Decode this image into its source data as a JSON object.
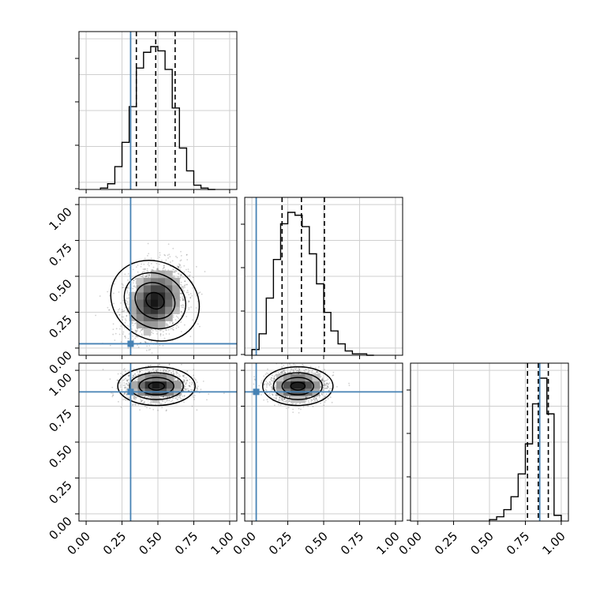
{
  "chart_data": {
    "type": "corner",
    "grid": true,
    "truth_color": "#4682b4",
    "hist_color": "#000000",
    "ticks": [
      "0.00",
      "0.25",
      "0.50",
      "0.75",
      "1.00"
    ],
    "tick_values": [
      0,
      0.25,
      0.5,
      0.75,
      1.0
    ],
    "xlim": [
      -0.05,
      1.05
    ],
    "parameters": [
      {
        "truth": 0.31,
        "quantiles": [
          0.35,
          0.485,
          0.62
        ],
        "histogram": {
          "bin_edges": [
            0.1,
            0.15,
            0.2,
            0.25,
            0.3,
            0.35,
            0.4,
            0.45,
            0.5,
            0.55,
            0.6,
            0.65,
            0.7,
            0.75,
            0.8,
            0.85,
            0.9
          ],
          "counts": [
            0.01,
            0.04,
            0.16,
            0.33,
            0.58,
            0.85,
            0.96,
            1.0,
            0.97,
            0.84,
            0.57,
            0.29,
            0.13,
            0.03,
            0.01,
            0.0
          ]
        }
      },
      {
        "truth": 0.03,
        "quantiles": [
          0.21,
          0.345,
          0.505
        ],
        "histogram": {
          "bin_edges": [
            0.0,
            0.05,
            0.1,
            0.15,
            0.2,
            0.25,
            0.3,
            0.35,
            0.4,
            0.45,
            0.5,
            0.55,
            0.6,
            0.65,
            0.7,
            0.75,
            0.8,
            0.85
          ],
          "counts": [
            0.04,
            0.15,
            0.4,
            0.67,
            0.92,
            1.0,
            0.98,
            0.9,
            0.71,
            0.5,
            0.3,
            0.17,
            0.08,
            0.03,
            0.01,
            0.01,
            0.0
          ]
        }
      },
      {
        "truth": 0.85,
        "quantiles": [
          0.765,
          0.84,
          0.91
        ],
        "histogram": {
          "bin_edges": [
            0.5,
            0.55,
            0.6,
            0.65,
            0.7,
            0.75,
            0.8,
            0.85,
            0.9,
            0.95,
            1.0
          ],
          "counts": [
            0.01,
            0.03,
            0.08,
            0.17,
            0.33,
            0.54,
            0.82,
            1.0,
            0.75,
            0.04
          ]
        }
      }
    ],
    "pairs": [
      {
        "x_param": 0,
        "y_param": 1,
        "mean": [
          0.48,
          0.33
        ],
        "sd": [
          0.11,
          0.13
        ],
        "corr": 0.25
      },
      {
        "x_param": 0,
        "y_param": 2,
        "mean": [
          0.49,
          0.89
        ],
        "sd": [
          0.11,
          0.055
        ],
        "corr": 0.0
      },
      {
        "x_param": 1,
        "y_param": 2,
        "mean": [
          0.32,
          0.89
        ],
        "sd": [
          0.1,
          0.055
        ],
        "corr": 0.0
      }
    ]
  }
}
